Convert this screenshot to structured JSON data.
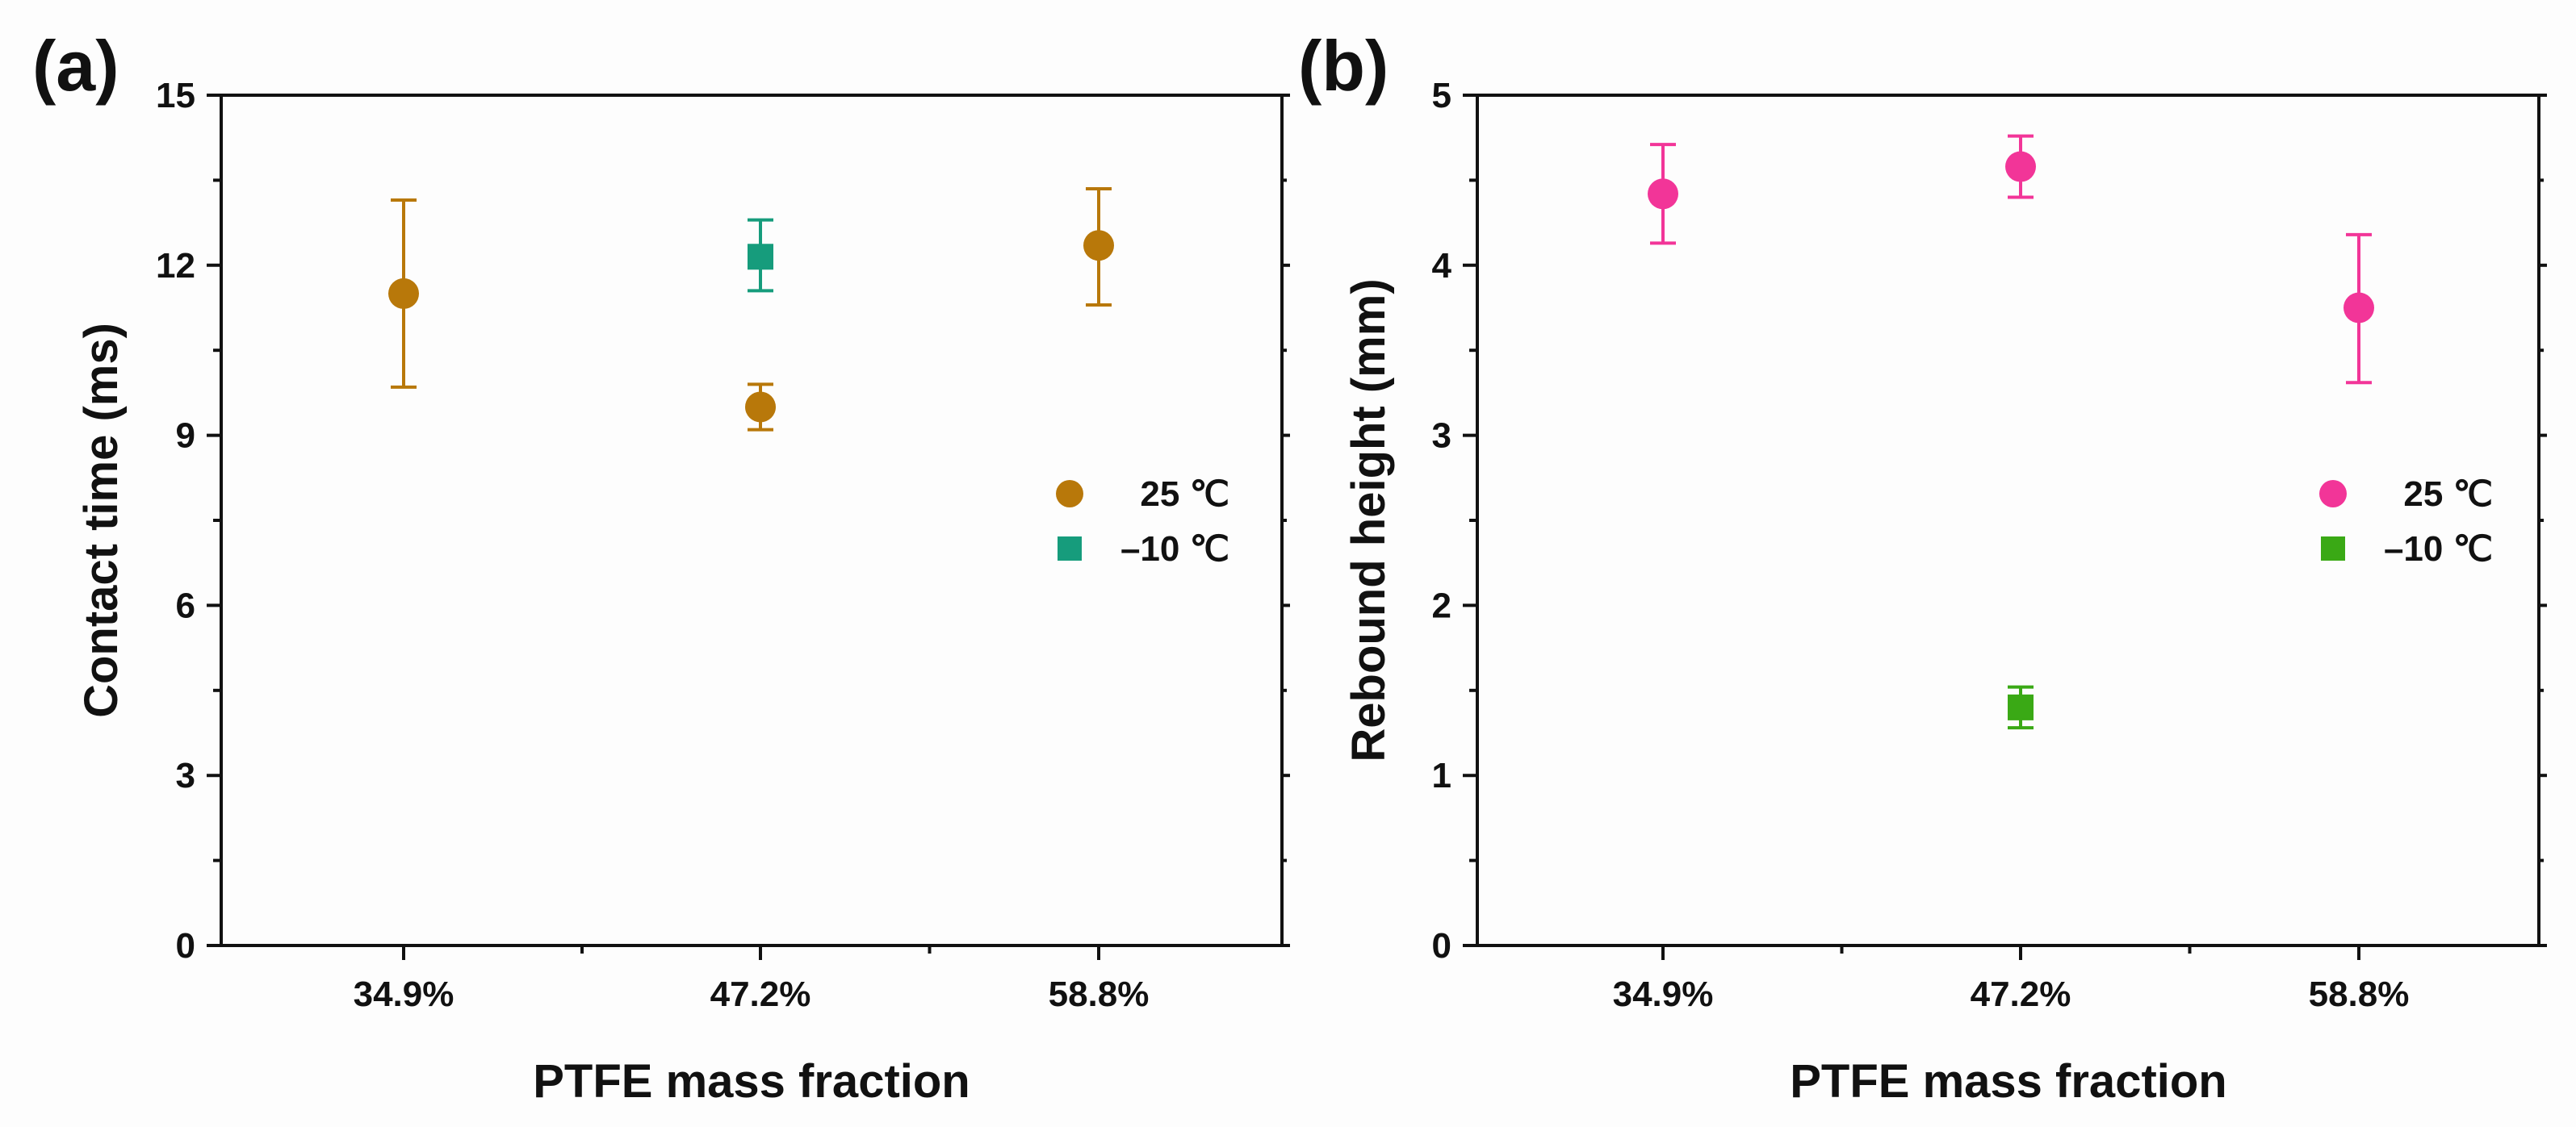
{
  "chart_data": [
    {
      "panel_label": "(a)",
      "type": "scatter",
      "xlabel": "PTFE mass fraction",
      "ylabel": "Contact time (ms)",
      "categories": [
        "34.9%",
        "47.2%",
        "58.8%"
      ],
      "ylim": [
        0,
        15
      ],
      "yticks": [
        "0",
        "3",
        "6",
        "9",
        "12",
        "15"
      ],
      "legend_position": "right-middle",
      "series": [
        {
          "name": "25 ℃",
          "marker": "circle",
          "color": "#b8780a",
          "points": [
            {
              "category": "34.9%",
              "value": 11.5,
              "err_low": 9.85,
              "err_high": 13.15
            },
            {
              "category": "47.2%",
              "value": 9.5,
              "err_low": 9.1,
              "err_high": 9.9
            },
            {
              "category": "58.8%",
              "value": 12.35,
              "err_low": 11.3,
              "err_high": 13.35
            }
          ]
        },
        {
          "name": "–10 ℃",
          "marker": "square",
          "color": "#169c7c",
          "points": [
            {
              "category": "47.2%",
              "value": 12.15,
              "err_low": 11.55,
              "err_high": 12.8
            }
          ]
        }
      ]
    },
    {
      "panel_label": "(b)",
      "type": "scatter",
      "xlabel": "PTFE mass fraction",
      "ylabel": "Rebound height (mm)",
      "categories": [
        "34.9%",
        "47.2%",
        "58.8%"
      ],
      "ylim": [
        0,
        5
      ],
      "yticks": [
        "0",
        "1",
        "2",
        "3",
        "4",
        "5"
      ],
      "legend_position": "right-middle",
      "series": [
        {
          "name": "25 ℃",
          "marker": "circle",
          "color": "#f23598",
          "points": [
            {
              "category": "34.9%",
              "value": 4.42,
              "err_low": 4.13,
              "err_high": 4.71
            },
            {
              "category": "47.2%",
              "value": 4.58,
              "err_low": 4.4,
              "err_high": 4.76
            },
            {
              "category": "58.8%",
              "value": 3.75,
              "err_low": 3.31,
              "err_high": 4.18
            }
          ]
        },
        {
          "name": "–10 ℃",
          "marker": "square",
          "color": "#3aa915",
          "points": [
            {
              "category": "47.2%",
              "value": 1.4,
              "err_low": 1.28,
              "err_high": 1.52
            }
          ]
        }
      ]
    }
  ]
}
